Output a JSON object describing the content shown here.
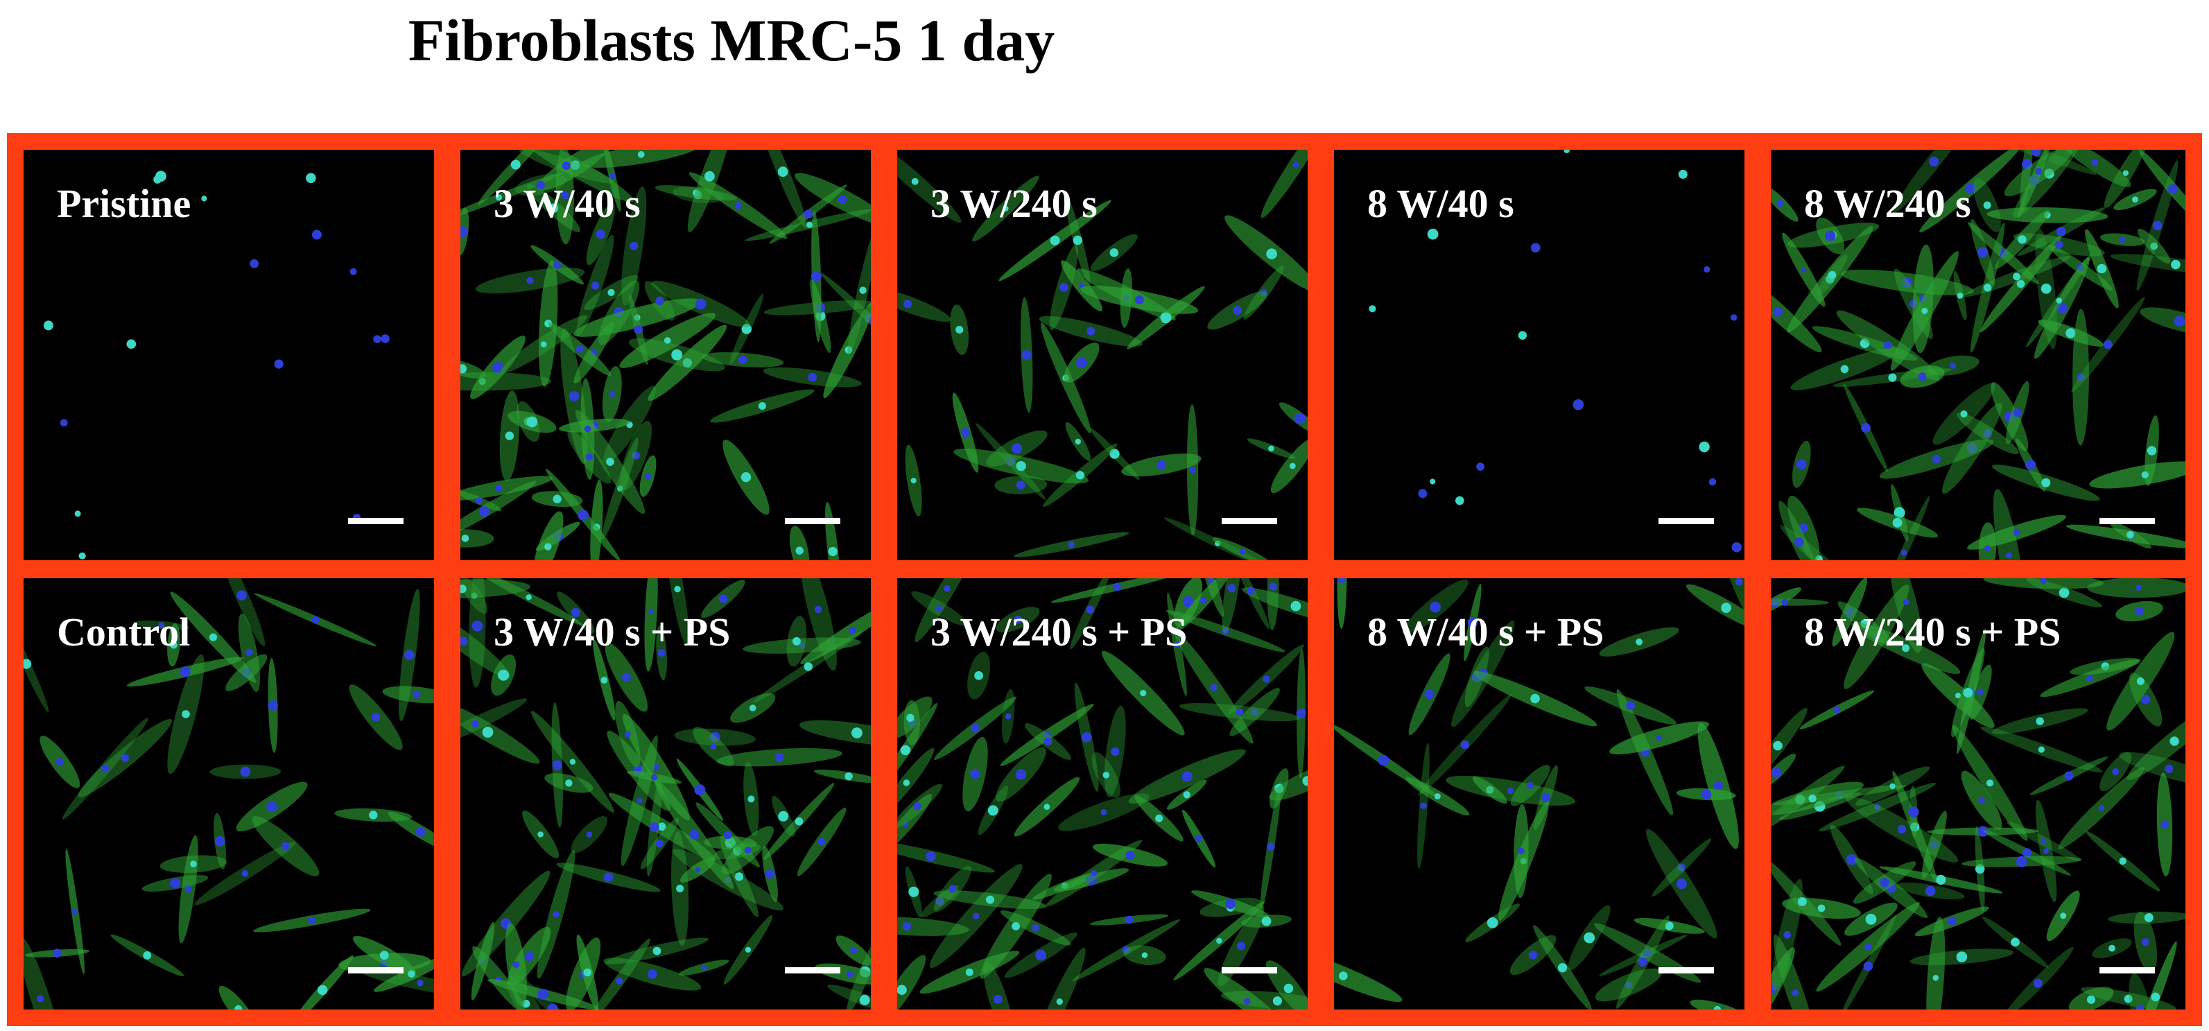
{
  "title": "Fibroblasts MRC-5 1 day",
  "colors": {
    "frame": "#ff3d12",
    "background": "#000000",
    "cytoskeleton": "#2fa336",
    "nucleus": "#2e3fd6",
    "nucleus_bright": "#3bd8c4",
    "label": "#ffffff"
  },
  "panels": [
    {
      "label": "Pristine",
      "density": "sparse",
      "row": 1,
      "column": 1
    },
    {
      "label": "3 W/40 s",
      "density": "dense",
      "row": 1,
      "column": 2
    },
    {
      "label": "3 W/240 s",
      "density": "medium",
      "row": 1,
      "column": 3
    },
    {
      "label": "8 W/40 s",
      "density": "sparse",
      "row": 1,
      "column": 4
    },
    {
      "label": "8 W/240 s",
      "density": "dense",
      "row": 1,
      "column": 5
    },
    {
      "label": "Control",
      "density": "medium",
      "row": 2,
      "column": 1
    },
    {
      "label": "3 W/40 s + PS",
      "density": "dense",
      "row": 2,
      "column": 2
    },
    {
      "label": "3 W/240 s + PS",
      "density": "dense",
      "row": 2,
      "column": 3
    },
    {
      "label": "8 W/40 s + PS",
      "density": "medium",
      "row": 2,
      "column": 4
    },
    {
      "label": "8 W/240 s + PS",
      "density": "dense",
      "row": 2,
      "column": 5
    }
  ]
}
